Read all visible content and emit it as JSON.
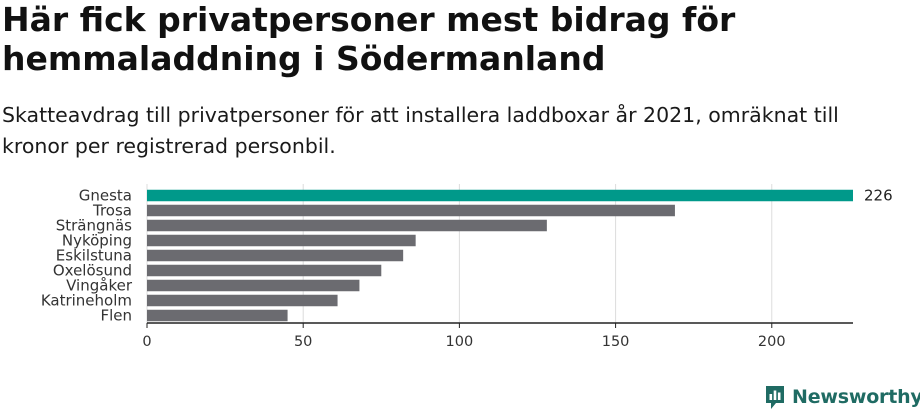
{
  "title": "Här fick privatpersoner mest bidrag för hemmaladdning i Södermanland",
  "subtitle": "Skatteavdrag till privatpersoner för att installera laddboxar år 2021, omräknat till kronor per registrerad personbil.",
  "brand": {
    "name": "Newsworthy",
    "icon": "newsworthy-logo-icon"
  },
  "colors": {
    "highlight": "#00998a",
    "bar": "#6b6b70",
    "grid": "#dcdcdc",
    "axis": "#222222",
    "brand": "#1f6b63"
  },
  "chart_data": {
    "type": "bar",
    "orientation": "horizontal",
    "categories": [
      "Gnesta",
      "Trosa",
      "Strängnäs",
      "Nyköping",
      "Eskilstuna",
      "Oxelösund",
      "Vingåker",
      "Katrineholm",
      "Flen"
    ],
    "values": [
      226,
      169,
      128,
      86,
      82,
      75,
      68,
      61,
      45
    ],
    "highlight_index": 0,
    "data_labels": [
      {
        "index": 0,
        "text": "226"
      }
    ],
    "xlim": [
      0,
      226
    ],
    "xticks": [
      0,
      50,
      100,
      150,
      200
    ],
    "grid": true,
    "xlabel": "",
    "ylabel": ""
  }
}
